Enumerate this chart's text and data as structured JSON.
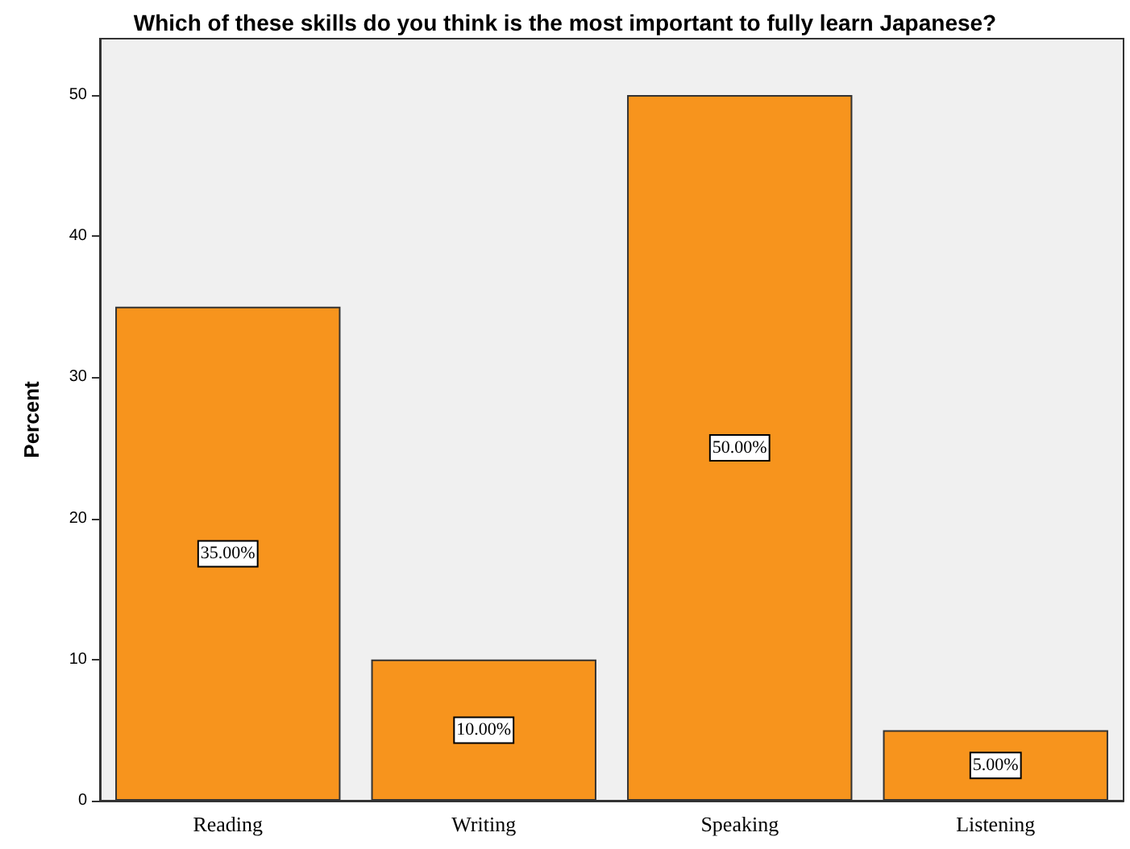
{
  "chart_data": {
    "type": "bar",
    "title": "Which of these skills do you think is the most important to fully learn Japanese?",
    "ylabel": "Percent",
    "categories": [
      "Reading",
      "Writing",
      "Speaking",
      "Listening"
    ],
    "values": [
      35,
      10,
      50,
      5
    ],
    "value_labels": [
      "35.00%",
      "10.00%",
      "50.00%",
      "5.00%"
    ],
    "color": "#f7941d",
    "ylim": [
      0,
      54
    ],
    "yticks": [
      0,
      10,
      20,
      30,
      40,
      50
    ],
    "grid": false
  }
}
